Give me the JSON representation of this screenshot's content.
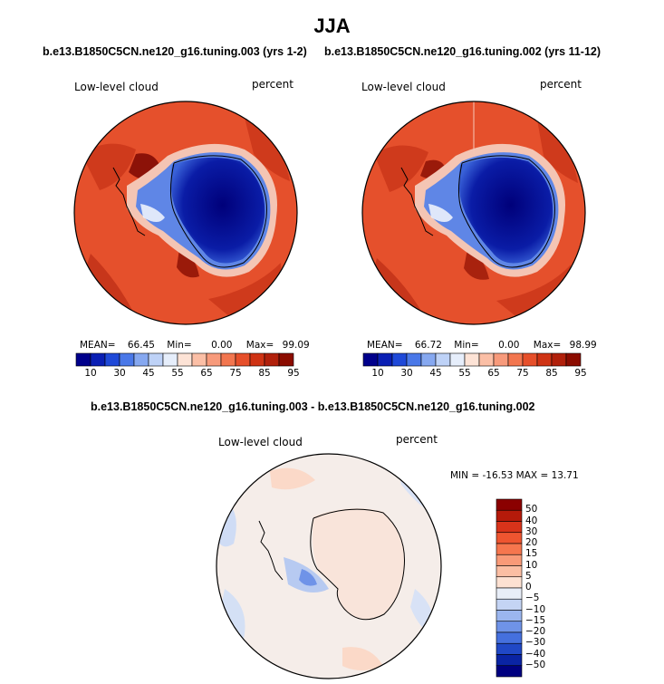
{
  "figure": {
    "title": "JJA",
    "caption_left": "b.e13.B1850C5CN.ne120_g16.tuning.003 (yrs 1-2)",
    "caption_right": "b.e13.B1850C5CN.ne120_g16.tuning.002 (yrs 11-12)",
    "caption_diff": "b.e13.B1850C5CN.ne120_g16.tuning.003 - b.e13.B1850C5CN.ne120_g16.tuning.002"
  },
  "chart_data": [
    {
      "type": "heatmap",
      "projection": "south polar stereographic",
      "title": "Low-level cloud",
      "units": "percent",
      "mean_label": "MEAN=",
      "mean": "66.45",
      "min_label": "Min=",
      "min": "0.00",
      "max_label": "Max=",
      "max": "99.09",
      "colorbar_ticks": [
        "10",
        "30",
        "45",
        "55",
        "65",
        "75",
        "85",
        "95"
      ],
      "colorbar_colors": [
        "#00008b",
        "#0a1fb4",
        "#1f49d8",
        "#4a78e8",
        "#86a8f0",
        "#bed2f7",
        "#e6eefb",
        "#fde3d6",
        "#fbbfa6",
        "#f79a7b",
        "#f2764f",
        "#e64f2a",
        "#cf3314",
        "#b1200b",
        "#8b0c00"
      ]
    },
    {
      "type": "heatmap",
      "projection": "south polar stereographic",
      "title": "Low-level cloud",
      "units": "percent",
      "mean_label": "MEAN=",
      "mean": "66.72",
      "min_label": "Min=",
      "min": "0.00",
      "max_label": "Max=",
      "max": "98.99",
      "colorbar_ticks": [
        "10",
        "30",
        "45",
        "55",
        "65",
        "75",
        "85",
        "95"
      ],
      "colorbar_colors": [
        "#00008b",
        "#0a1fb4",
        "#1f49d8",
        "#4a78e8",
        "#86a8f0",
        "#bed2f7",
        "#e6eefb",
        "#fde3d6",
        "#fbbfa6",
        "#f79a7b",
        "#f2764f",
        "#e64f2a",
        "#cf3314",
        "#b1200b",
        "#8b0c00"
      ]
    },
    {
      "type": "heatmap",
      "projection": "south polar stereographic",
      "title": "Low-level cloud",
      "units": "percent",
      "minmax_label": "MIN = -16.53  MAX =  13.71",
      "colorbar_ticks": [
        "50",
        "40",
        "30",
        "20",
        "15",
        "10",
        "5",
        "0",
        "−5",
        "−10",
        "−15",
        "−20",
        "−30",
        "−40",
        "−50"
      ],
      "colorbar_colors": [
        "#8b0000",
        "#b51a0a",
        "#d8331a",
        "#ee5530",
        "#f6764e",
        "#f99a78",
        "#fbbea3",
        "#fde1d2",
        "#e8eef8",
        "#c4d4f4",
        "#9bb6ef",
        "#6f93e8",
        "#4570de",
        "#2048c6",
        "#0a24a4",
        "#000080"
      ]
    }
  ],
  "colors": {
    "ocean_red": "#e4502d",
    "ocean_deep": "#c9381c",
    "ice_blue": "#0a1aa3",
    "diff_base": "#f7eee8"
  }
}
